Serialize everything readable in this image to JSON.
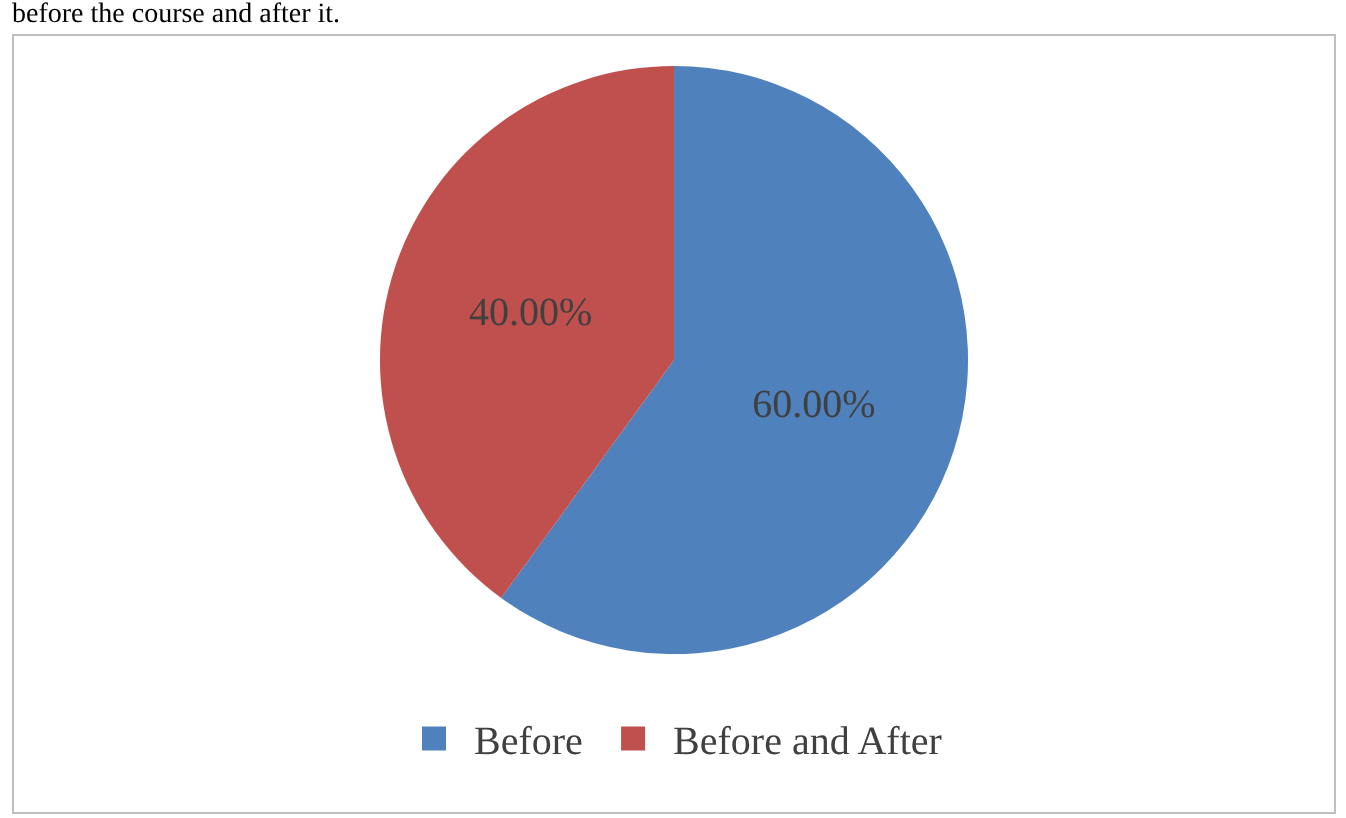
{
  "chart_data": {
    "type": "pie",
    "title": "before the course and after it.",
    "categories": [
      "Before",
      "Before and After"
    ],
    "values": [
      60,
      40
    ],
    "colors": [
      "#4f81bd",
      "#c0504d"
    ],
    "value_labels": [
      "60.00%",
      "40.00%"
    ],
    "legend": "bottom"
  }
}
